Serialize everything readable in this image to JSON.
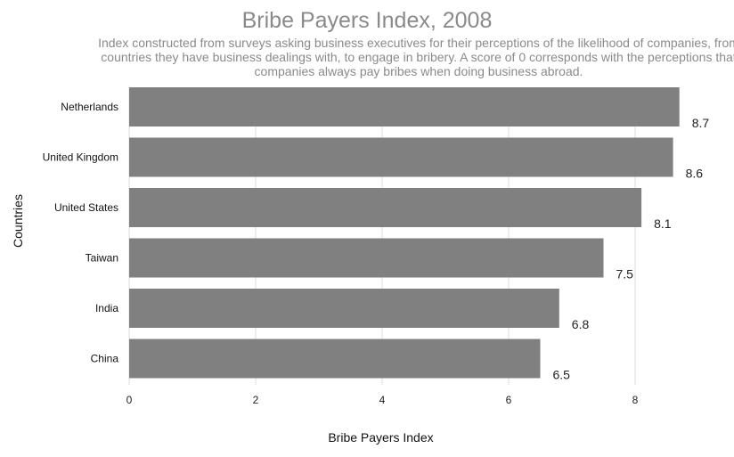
{
  "chart_data": {
    "type": "bar",
    "orientation": "horizontal",
    "title": "Bribe Payers Index, 2008",
    "subtitle": "Index constructed from surveys asking business executives for their perceptions of the likelihood of companies, from countries they have business dealings with, to engage in bribery. A score of 0 corresponds with the perceptions that companies always pay bribes when doing business abroad.",
    "xlabel": "Bribe Payers Index",
    "ylabel": "Countries",
    "categories": [
      "Netherlands",
      "United Kingdom",
      "United States",
      "Taiwan",
      "India",
      "China"
    ],
    "values": [
      8.7,
      8.6,
      8.1,
      7.5,
      6.8,
      6.5
    ],
    "value_labels": [
      "8.7",
      "8.6",
      "8.1",
      "7.5",
      "6.8",
      "6.5"
    ],
    "xlim": [
      0,
      8.7
    ],
    "xticks": [
      0,
      2,
      4,
      6,
      8
    ],
    "grid": "vertical",
    "legend": "none",
    "bar_color": "#808080"
  }
}
